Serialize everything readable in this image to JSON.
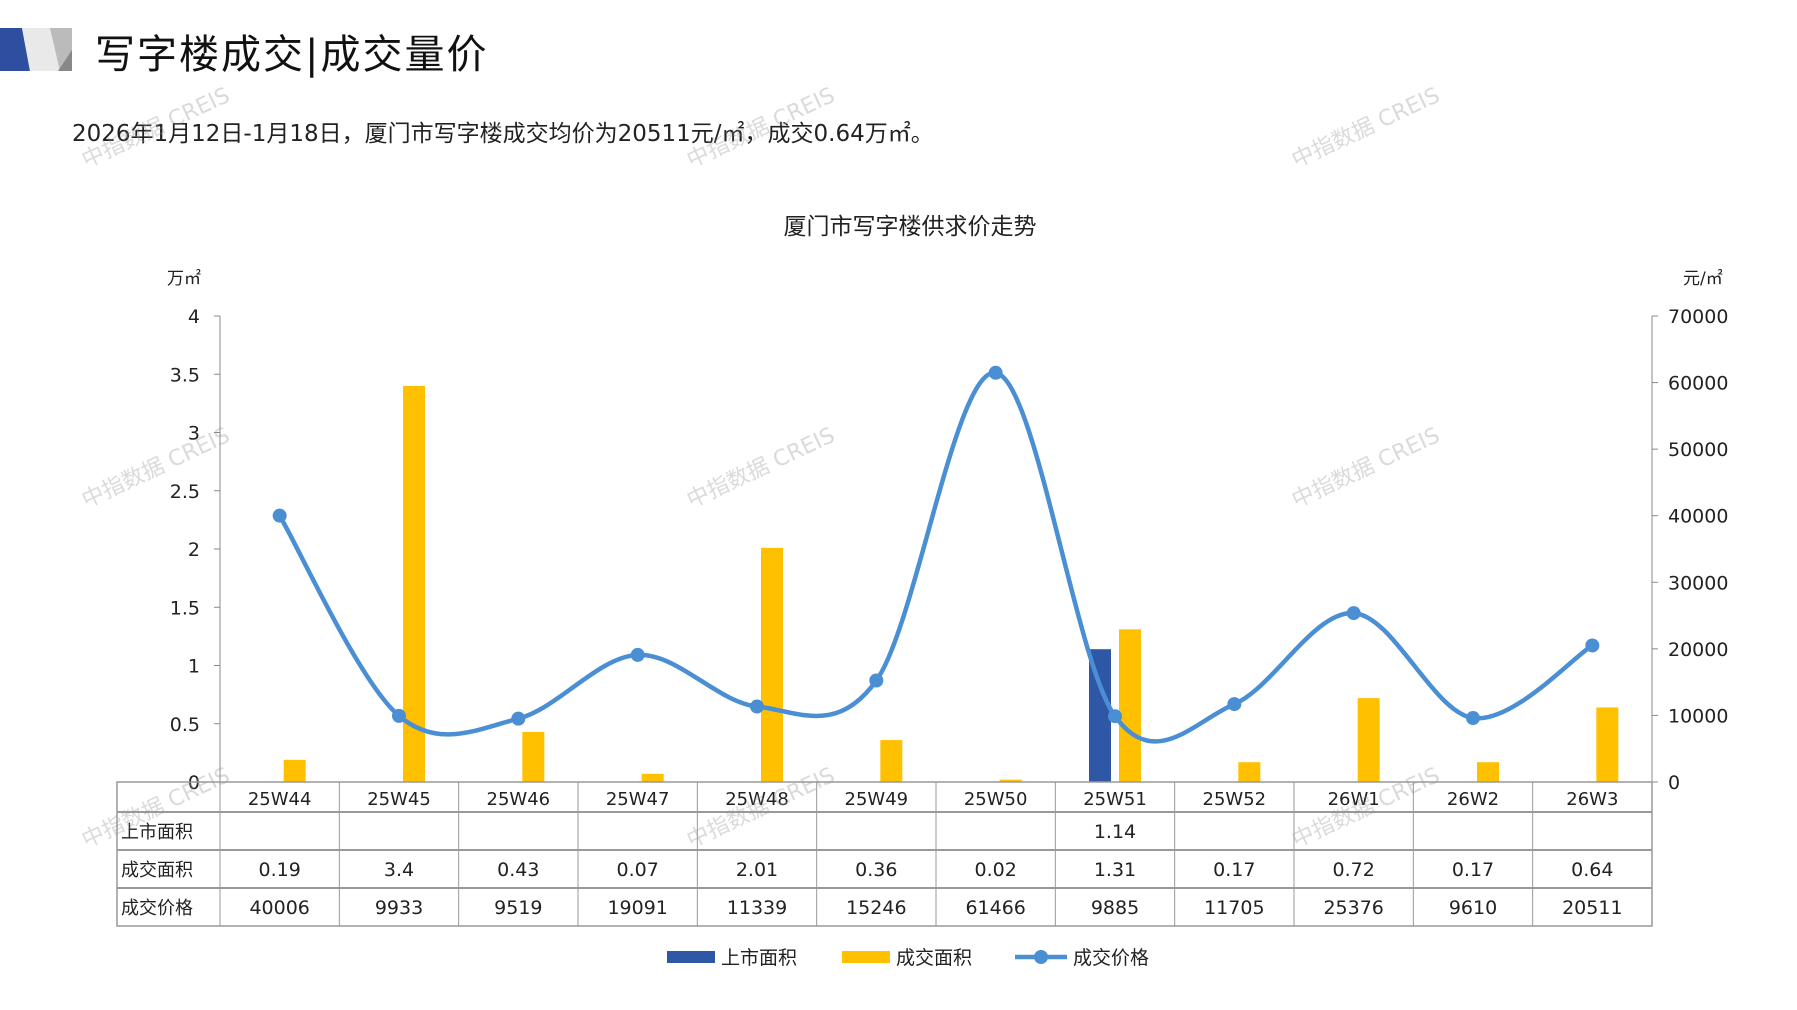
{
  "header": {
    "title": "写字楼成交|成交量价",
    "subtitle": "2026年1月12日-1月18日，厦门市写字楼成交均价为20511元/㎡，成交0.64万㎡。"
  },
  "watermark": "中指数据 CREIS",
  "colors": {
    "supply": "#2E58A6",
    "deal_area": "#FFC000",
    "price": "#4A8FD4"
  },
  "chart_data": {
    "type": "bar+line",
    "title": "厦门市写字楼供求价走势",
    "ylabel_left": "万㎡",
    "ylabel_right": "元/㎡",
    "ylim_left": [
      0,
      4
    ],
    "yticks_left": [
      "0",
      "0.5",
      "1",
      "1.5",
      "2",
      "2.5",
      "3",
      "3.5",
      "4"
    ],
    "ylim_right": [
      0,
      70000
    ],
    "yticks_right": [
      "0",
      "10000",
      "20000",
      "30000",
      "40000",
      "50000",
      "60000",
      "70000"
    ],
    "categories": [
      "25W44",
      "25W45",
      "25W46",
      "25W47",
      "25W48",
      "25W49",
      "25W50",
      "25W51",
      "25W52",
      "26W1",
      "26W2",
      "26W3"
    ],
    "series": [
      {
        "name": "上市面积",
        "type": "bar",
        "axis": "left",
        "values": [
          null,
          null,
          null,
          null,
          null,
          null,
          null,
          1.14,
          null,
          null,
          null,
          null
        ],
        "labels": [
          "",
          "",
          "",
          "",
          "",
          "",
          "",
          "1.14",
          "",
          "",
          "",
          ""
        ]
      },
      {
        "name": "成交面积",
        "type": "bar",
        "axis": "left",
        "values": [
          0.19,
          3.4,
          0.43,
          0.07,
          2.01,
          0.36,
          0.02,
          1.31,
          0.17,
          0.72,
          0.17,
          0.64
        ],
        "labels": [
          "0.19",
          "3.4",
          "0.43",
          "0.07",
          "2.01",
          "0.36",
          "0.02",
          "1.31",
          "0.17",
          "0.72",
          "0.17",
          "0.64"
        ]
      },
      {
        "name": "成交价格",
        "type": "line",
        "axis": "right",
        "values": [
          40006,
          9933,
          9519,
          19091,
          11339,
          15246,
          61466,
          9885,
          11705,
          25376,
          9610,
          20511
        ],
        "labels": [
          "40006",
          "9933",
          "9519",
          "19091",
          "11339",
          "15246",
          "61466",
          "9885",
          "11705",
          "25376",
          "9610",
          "20511"
        ]
      }
    ],
    "legend": "bottom"
  }
}
